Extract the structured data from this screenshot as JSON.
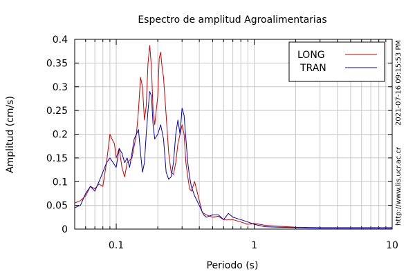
{
  "chart_data": {
    "type": "line",
    "title": "Espectro de amplitud Agroalimentarias",
    "xlabel": "Periodo (s)",
    "ylabel": "Amplitud (cm/s)",
    "x_scale": "log",
    "xlim": [
      0.05,
      10
    ],
    "ylim": [
      0,
      0.4
    ],
    "x_ticks": [
      0.1,
      1,
      10
    ],
    "x_tick_labels": [
      "0.1",
      "1",
      "10"
    ],
    "y_ticks": [
      0,
      0.05,
      0.1,
      0.15,
      0.2,
      0.25,
      0.3,
      0.35,
      0.4
    ],
    "y_tick_labels": [
      "0",
      "0.05",
      "0.1",
      "0.15",
      "0.2",
      "0.25",
      "0.3",
      "0.35",
      "0.4"
    ],
    "grid": true,
    "legend_position": "top-right",
    "side_text": [
      "2021-07-16 09:15:53 PM",
      "http://www.lis.ucr.ac.cr"
    ],
    "series": [
      {
        "name": "LONG",
        "color": "#cc0000",
        "x": [
          0.05,
          0.055,
          0.06,
          0.065,
          0.07,
          0.075,
          0.08,
          0.085,
          0.09,
          0.093,
          0.097,
          0.1,
          0.105,
          0.11,
          0.115,
          0.12,
          0.13,
          0.14,
          0.145,
          0.15,
          0.155,
          0.16,
          0.165,
          0.17,
          0.175,
          0.18,
          0.185,
          0.19,
          0.2,
          0.205,
          0.21,
          0.215,
          0.22,
          0.23,
          0.24,
          0.25,
          0.26,
          0.27,
          0.28,
          0.29,
          0.3,
          0.31,
          0.32,
          0.33,
          0.34,
          0.35,
          0.37,
          0.4,
          0.42,
          0.45,
          0.5,
          0.55,
          0.6,
          0.7,
          0.8,
          0.9,
          1.0,
          1.2,
          1.5,
          2.0,
          3.0,
          5.0,
          7.0,
          10.0
        ],
        "values": [
          0.055,
          0.06,
          0.07,
          0.09,
          0.085,
          0.095,
          0.09,
          0.14,
          0.2,
          0.19,
          0.18,
          0.15,
          0.17,
          0.13,
          0.11,
          0.14,
          0.15,
          0.2,
          0.25,
          0.32,
          0.3,
          0.23,
          0.26,
          0.35,
          0.387,
          0.34,
          0.25,
          0.22,
          0.28,
          0.36,
          0.373,
          0.34,
          0.32,
          0.24,
          0.16,
          0.12,
          0.115,
          0.14,
          0.18,
          0.2,
          0.22,
          0.2,
          0.14,
          0.11,
          0.085,
          0.08,
          0.1,
          0.06,
          0.035,
          0.03,
          0.025,
          0.027,
          0.02,
          0.02,
          0.015,
          0.01,
          0.012,
          0.008,
          0.006,
          0.004,
          0.003,
          0.003,
          0.003,
          0.003
        ]
      },
      {
        "name": "TRAN",
        "color": "#0000bb",
        "x": [
          0.05,
          0.055,
          0.06,
          0.065,
          0.07,
          0.075,
          0.08,
          0.085,
          0.09,
          0.095,
          0.1,
          0.105,
          0.11,
          0.115,
          0.12,
          0.125,
          0.13,
          0.135,
          0.14,
          0.145,
          0.15,
          0.155,
          0.16,
          0.165,
          0.17,
          0.175,
          0.18,
          0.185,
          0.19,
          0.2,
          0.21,
          0.22,
          0.23,
          0.24,
          0.25,
          0.26,
          0.27,
          0.28,
          0.29,
          0.3,
          0.31,
          0.32,
          0.33,
          0.34,
          0.35,
          0.37,
          0.4,
          0.43,
          0.45,
          0.5,
          0.55,
          0.6,
          0.65,
          0.7,
          0.8,
          0.9,
          1.0,
          1.2,
          1.5,
          2.0,
          3.0,
          5.0,
          7.0,
          10.0
        ],
        "values": [
          0.045,
          0.05,
          0.075,
          0.09,
          0.08,
          0.1,
          0.12,
          0.14,
          0.15,
          0.14,
          0.13,
          0.17,
          0.16,
          0.14,
          0.15,
          0.13,
          0.16,
          0.19,
          0.2,
          0.21,
          0.16,
          0.12,
          0.14,
          0.2,
          0.25,
          0.29,
          0.28,
          0.22,
          0.19,
          0.2,
          0.22,
          0.19,
          0.12,
          0.105,
          0.11,
          0.14,
          0.2,
          0.23,
          0.2,
          0.255,
          0.24,
          0.19,
          0.14,
          0.11,
          0.09,
          0.07,
          0.05,
          0.03,
          0.025,
          0.03,
          0.03,
          0.02,
          0.033,
          0.025,
          0.02,
          0.015,
          0.01,
          0.005,
          0.004,
          0.003,
          0.002,
          0.002,
          0.002,
          0.002
        ]
      }
    ]
  }
}
